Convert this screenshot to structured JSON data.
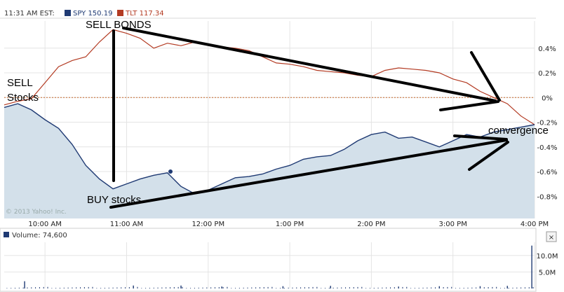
{
  "header": {
    "time_label": "11:31 AM EST:",
    "spy_label": "SPY 150.19",
    "tlt_label": "TLT 117.34",
    "volume_label": "Volume: 74,600",
    "copyright": "© 2013 Yahoo! Inc."
  },
  "colors": {
    "spy": "#1f3a73",
    "spy_fill": "#d3e0ea",
    "tlt": "#b33a22",
    "zero_line": "#c8682a",
    "grid": "#e4e4e4",
    "volume": "#1f3a73",
    "annotation": "#000000"
  },
  "annotations": {
    "sell_bonds": "SELL BONDS",
    "sell": "SELL",
    "stocks": "Stocks",
    "buy_stocks": "BUY stocks",
    "convergence": "convergence"
  },
  "chart_data": {
    "type": "line",
    "x_ticks": [
      "10:00 AM",
      "11:00 AM",
      "12:00 PM",
      "1:00 PM",
      "2:00 PM",
      "3:00 PM",
      "4:00 PM"
    ],
    "y_ticks": [
      "0.4%",
      "0.2%",
      "0%",
      "-0.2%",
      "-0.4%",
      "-0.6%",
      "-0.8%"
    ],
    "y_tick_values": [
      0.4,
      0.2,
      0.0,
      -0.2,
      -0.4,
      -0.6,
      -0.8
    ],
    "ylim": [
      -0.98,
      0.62
    ],
    "x_range": [
      "9:30 AM",
      "4:00 PM"
    ],
    "grid": true,
    "legend_position": "top-left",
    "series": [
      {
        "name": "SPY 150.19",
        "fill": true,
        "points": [
          [
            "9:30",
            -0.08
          ],
          [
            "9:40",
            -0.05
          ],
          [
            "9:50",
            -0.1
          ],
          [
            "10:00",
            -0.18
          ],
          [
            "10:10",
            -0.25
          ],
          [
            "10:20",
            -0.38
          ],
          [
            "10:30",
            -0.55
          ],
          [
            "10:40",
            -0.66
          ],
          [
            "10:50",
            -0.74
          ],
          [
            "11:00",
            -0.7
          ],
          [
            "11:10",
            -0.66
          ],
          [
            "11:20",
            -0.63
          ],
          [
            "11:30",
            -0.61
          ],
          [
            "11:40",
            -0.72
          ],
          [
            "11:50",
            -0.78
          ],
          [
            "12:00",
            -0.75
          ],
          [
            "12:10",
            -0.7
          ],
          [
            "12:20",
            -0.65
          ],
          [
            "12:30",
            -0.64
          ],
          [
            "12:40",
            -0.62
          ],
          [
            "12:50",
            -0.58
          ],
          [
            "13:00",
            -0.55
          ],
          [
            "13:10",
            -0.5
          ],
          [
            "13:20",
            -0.48
          ],
          [
            "13:30",
            -0.47
          ],
          [
            "13:40",
            -0.42
          ],
          [
            "13:50",
            -0.35
          ],
          [
            "14:00",
            -0.3
          ],
          [
            "14:10",
            -0.28
          ],
          [
            "14:20",
            -0.33
          ],
          [
            "14:30",
            -0.32
          ],
          [
            "14:40",
            -0.36
          ],
          [
            "14:50",
            -0.4
          ],
          [
            "15:00",
            -0.35
          ],
          [
            "15:10",
            -0.3
          ],
          [
            "15:20",
            -0.32
          ],
          [
            "15:30",
            -0.28
          ],
          [
            "15:40",
            -0.26
          ],
          [
            "15:50",
            -0.24
          ],
          [
            "16:00",
            -0.22
          ]
        ]
      },
      {
        "name": "TLT 117.34",
        "fill": false,
        "points": [
          [
            "9:30",
            -0.06
          ],
          [
            "9:40",
            -0.03
          ],
          [
            "9:50",
            -0.01
          ],
          [
            "10:00",
            0.12
          ],
          [
            "10:10",
            0.25
          ],
          [
            "10:20",
            0.3
          ],
          [
            "10:30",
            0.33
          ],
          [
            "10:40",
            0.45
          ],
          [
            "10:50",
            0.55
          ],
          [
            "11:00",
            0.52
          ],
          [
            "11:10",
            0.48
          ],
          [
            "11:20",
            0.4
          ],
          [
            "11:30",
            0.44
          ],
          [
            "11:40",
            0.42
          ],
          [
            "11:50",
            0.45
          ],
          [
            "12:00",
            0.43
          ],
          [
            "12:10",
            0.41
          ],
          [
            "12:20",
            0.4
          ],
          [
            "12:30",
            0.38
          ],
          [
            "12:40",
            0.33
          ],
          [
            "12:50",
            0.28
          ],
          [
            "13:00",
            0.27
          ],
          [
            "13:10",
            0.25
          ],
          [
            "13:20",
            0.22
          ],
          [
            "13:30",
            0.21
          ],
          [
            "13:40",
            0.2
          ],
          [
            "13:50",
            0.18
          ],
          [
            "14:00",
            0.17
          ],
          [
            "14:10",
            0.22
          ],
          [
            "14:20",
            0.24
          ],
          [
            "14:30",
            0.23
          ],
          [
            "14:40",
            0.22
          ],
          [
            "14:50",
            0.2
          ],
          [
            "15:00",
            0.15
          ],
          [
            "15:10",
            0.12
          ],
          [
            "15:20",
            0.05
          ],
          [
            "15:30",
            0.0
          ],
          [
            "15:40",
            -0.05
          ],
          [
            "15:50",
            -0.15
          ],
          [
            "16:00",
            -0.22
          ]
        ]
      }
    ],
    "volume": {
      "label": "Volume: 74,600",
      "y_ticks": [
        "10.0M",
        "5.0M"
      ],
      "y_tick_values": [
        10,
        5
      ],
      "ylim": [
        0,
        14
      ],
      "bars": [
        [
          "9:45",
          2.2
        ],
        [
          "11:05",
          0.9
        ],
        [
          "11:40",
          0.9
        ],
        [
          "12:10",
          0.6
        ],
        [
          "12:55",
          0.7
        ],
        [
          "13:30",
          0.8
        ],
        [
          "14:20",
          0.6
        ],
        [
          "14:50",
          0.7
        ],
        [
          "15:20",
          0.7
        ],
        [
          "15:40",
          0.8
        ],
        [
          "15:58",
          13.0
        ]
      ]
    }
  }
}
